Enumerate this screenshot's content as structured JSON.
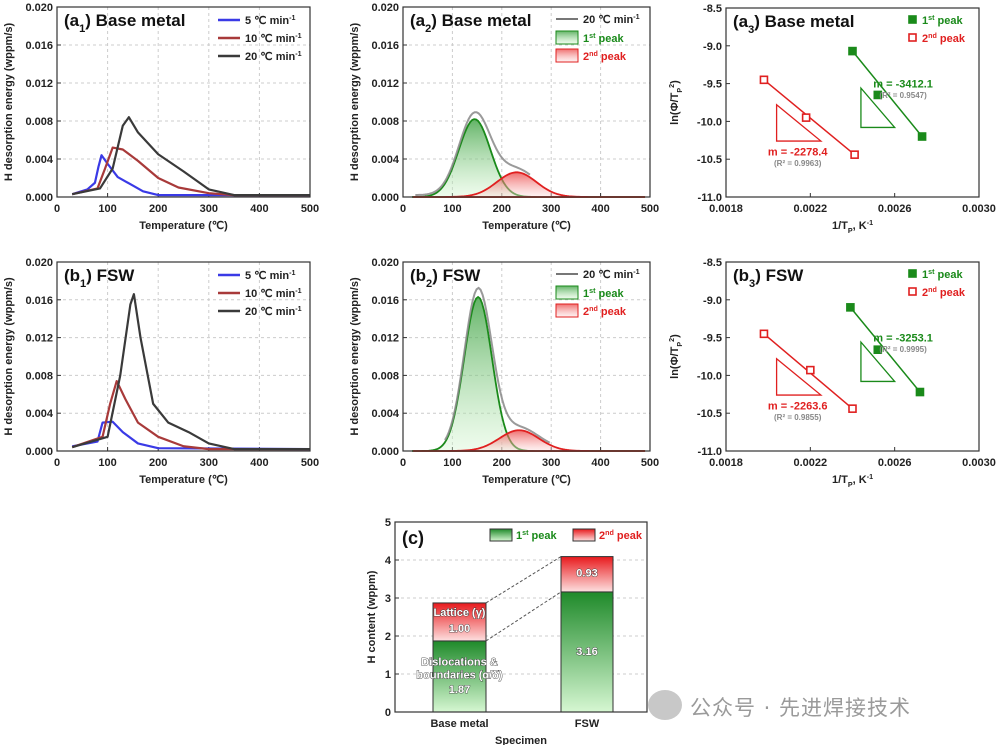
{
  "colors": {
    "c5": "#3a3ae6",
    "c10": "#a83a3a",
    "c20": "#3a3a3a",
    "green": "#1a8a1a",
    "red": "#e02020",
    "gray": "#888888"
  },
  "watermark": "公众号 · 先进焊接技术",
  "chart_data": [
    {
      "id": "a1",
      "type": "line",
      "label": [
        [
          "(a",
          ""
        ],
        [
          "1",
          "sub"
        ],
        [
          ") Base metal",
          ""
        ]
      ],
      "xlabel": [
        [
          "Temperature (℃)",
          ""
        ]
      ],
      "ylabel": [
        [
          "H desorption energy (wppm/s)",
          ""
        ]
      ],
      "xlim": [
        0,
        500
      ],
      "ylim": [
        0,
        0.02
      ],
      "xticks": [
        "0",
        "100",
        "200",
        "300",
        "400",
        "500"
      ],
      "yticks": [
        "0.000",
        "0.004",
        "0.008",
        "0.012",
        "0.016",
        "0.020"
      ],
      "grid": true,
      "legend": "top-right",
      "series": [
        {
          "name": [
            [
              "5 ℃ min",
              ""
            ],
            [
              "-1",
              "sup"
            ]
          ],
          "color": "c5",
          "points": [
            [
              30,
              0.0003
            ],
            [
              60,
              0.0008
            ],
            [
              75,
              0.0015
            ],
            [
              82,
              0.0032
            ],
            [
              88,
              0.0044
            ],
            [
              100,
              0.0035
            ],
            [
              120,
              0.0021
            ],
            [
              150,
              0.0012
            ],
            [
              170,
              0.0006
            ],
            [
              200,
              0.0002
            ],
            [
              500,
              0.0002
            ]
          ]
        },
        {
          "name": [
            [
              "10 ℃ min",
              ""
            ],
            [
              "-1",
              "sup"
            ]
          ],
          "color": "c10",
          "points": [
            [
              30,
              0.0003
            ],
            [
              80,
              0.0009
            ],
            [
              95,
              0.003
            ],
            [
              110,
              0.0052
            ],
            [
              130,
              0.005
            ],
            [
              160,
              0.0038
            ],
            [
              200,
              0.002
            ],
            [
              240,
              0.001
            ],
            [
              300,
              0.0004
            ],
            [
              350,
              0.0002
            ],
            [
              500,
              0.0002
            ]
          ]
        },
        {
          "name": [
            [
              "20 ℃ min",
              ""
            ],
            [
              "-1",
              "sup"
            ]
          ],
          "color": "c20",
          "points": [
            [
              30,
              0.0003
            ],
            [
              85,
              0.0009
            ],
            [
              110,
              0.003
            ],
            [
              130,
              0.0075
            ],
            [
              142,
              0.0084
            ],
            [
              160,
              0.0068
            ],
            [
              200,
              0.0045
            ],
            [
              250,
              0.0027
            ],
            [
              300,
              0.0008
            ],
            [
              350,
              0.0002
            ],
            [
              500,
              0.0002
            ]
          ]
        }
      ]
    },
    {
      "id": "a2",
      "type": "area",
      "label": [
        [
          "(a",
          ""
        ],
        [
          "2",
          "sub"
        ],
        [
          ") Base metal",
          ""
        ]
      ],
      "xlabel": [
        [
          "Temperature (℃)",
          ""
        ]
      ],
      "ylabel": [
        [
          "H desorption energy (wppm/s)",
          ""
        ]
      ],
      "xlim": [
        0,
        500
      ],
      "ylim": [
        0,
        0.02
      ],
      "xticks": [
        "0",
        "100",
        "200",
        "300",
        "400",
        "500"
      ],
      "yticks": [
        "0.000",
        "0.004",
        "0.008",
        "0.012",
        "0.016",
        "0.020"
      ],
      "grid": true,
      "legend": "top-right",
      "measured": {
        "name": [
          [
            "20 ℃ min",
            ""
          ],
          [
            "-1",
            "sup"
          ]
        ],
        "range": [
          25,
          260
        ]
      },
      "peaks": [
        {
          "name": [
            [
              "1",
              ""
            ],
            [
              "st",
              "sup"
            ],
            [
              " peak",
              ""
            ]
          ],
          "center": 145,
          "height": 0.0082,
          "sigma": 32,
          "color": "green"
        },
        {
          "name": [
            [
              "2",
              ""
            ],
            [
              "nd",
              "sup"
            ],
            [
              " peak",
              ""
            ]
          ],
          "center": 230,
          "height": 0.0026,
          "sigma": 40,
          "color": "red"
        }
      ]
    },
    {
      "id": "a3",
      "type": "scatter",
      "label": [
        [
          "(a",
          ""
        ],
        [
          "3",
          "sub"
        ],
        [
          ") Base metal",
          ""
        ]
      ],
      "xlabel": [
        [
          "1/T",
          ""
        ],
        [
          "P",
          "sub"
        ],
        [
          ", K",
          ""
        ],
        [
          "-1",
          "sup"
        ]
      ],
      "ylabel": [
        [
          "ln(Φ/T",
          ""
        ],
        [
          "P",
          "sub"
        ],
        [
          "2",
          "sup"
        ],
        [
          ")",
          ""
        ]
      ],
      "xlim": [
        0.0018,
        0.003
      ],
      "ylim": [
        -11,
        -8.5
      ],
      "xticks": [
        "0.0018",
        "0.0022",
        "0.0026",
        "0.0030"
      ],
      "yticks": [
        "-11.0",
        "-10.5",
        "-10.0",
        "-9.5",
        "-9.0",
        "-8.5"
      ],
      "grid": false,
      "legend": "top-right",
      "series": [
        {
          "name": [
            [
              "1",
              ""
            ],
            [
              "st",
              "sup"
            ],
            [
              " peak",
              ""
            ]
          ],
          "color": "green",
          "filled": true,
          "points": [
            [
              0.0024,
              -9.07
            ],
            [
              0.00252,
              -9.65
            ],
            [
              0.00273,
              -10.2
            ]
          ],
          "slope": "m = -3412.1",
          "r2": "(R² = 0.9547)"
        },
        {
          "name": [
            [
              "2",
              ""
            ],
            [
              "nd",
              "sup"
            ],
            [
              " peak",
              ""
            ]
          ],
          "color": "red",
          "filled": false,
          "points": [
            [
              0.00198,
              -9.45
            ],
            [
              0.00218,
              -9.95
            ],
            [
              0.00241,
              -10.44
            ]
          ],
          "slope": "m = -2278.4",
          "r2": "(R² = 0.9963)"
        }
      ]
    },
    {
      "id": "b1",
      "type": "line",
      "label": [
        [
          "(b",
          ""
        ],
        [
          "1",
          "sub"
        ],
        [
          ") FSW",
          ""
        ]
      ],
      "xlabel": [
        [
          "Temperature (℃)",
          ""
        ]
      ],
      "ylabel": [
        [
          "H desorption energy (wppm/s)",
          ""
        ]
      ],
      "xlim": [
        0,
        500
      ],
      "ylim": [
        0,
        0.02
      ],
      "xticks": [
        "0",
        "100",
        "200",
        "300",
        "400",
        "500"
      ],
      "yticks": [
        "0.000",
        "0.004",
        "0.008",
        "0.012",
        "0.016",
        "0.020"
      ],
      "grid": true,
      "legend": "top-right",
      "series": [
        {
          "name": [
            [
              "5 ℃ min",
              ""
            ],
            [
              "-1",
              "sup"
            ]
          ],
          "color": "c5",
          "points": [
            [
              30,
              0.0005
            ],
            [
              80,
              0.001
            ],
            [
              90,
              0.003
            ],
            [
              110,
              0.0031
            ],
            [
              130,
              0.002
            ],
            [
              160,
              0.0008
            ],
            [
              200,
              0.0003
            ],
            [
              500,
              0.0002
            ]
          ]
        },
        {
          "name": [
            [
              "10 ℃ min",
              ""
            ],
            [
              "-1",
              "sup"
            ]
          ],
          "color": "c10",
          "points": [
            [
              30,
              0.0004
            ],
            [
              90,
              0.0015
            ],
            [
              105,
              0.005
            ],
            [
              118,
              0.0074
            ],
            [
              135,
              0.0055
            ],
            [
              160,
              0.003
            ],
            [
              200,
              0.0015
            ],
            [
              250,
              0.0005
            ],
            [
              300,
              0.0002
            ],
            [
              500,
              0.0002
            ]
          ]
        },
        {
          "name": [
            [
              "20 ℃ min",
              ""
            ],
            [
              "-1",
              "sup"
            ]
          ],
          "color": "c20",
          "points": [
            [
              30,
              0.0004
            ],
            [
              100,
              0.0015
            ],
            [
              125,
              0.008
            ],
            [
              145,
              0.0155
            ],
            [
              152,
              0.0166
            ],
            [
              165,
              0.012
            ],
            [
              190,
              0.005
            ],
            [
              220,
              0.003
            ],
            [
              260,
              0.002
            ],
            [
              300,
              0.0008
            ],
            [
              350,
              0.0002
            ],
            [
              500,
              0.0002
            ]
          ]
        }
      ]
    },
    {
      "id": "b2",
      "type": "area",
      "label": [
        [
          "(b",
          ""
        ],
        [
          "2",
          "sub"
        ],
        [
          ") FSW",
          ""
        ]
      ],
      "xlabel": [
        [
          "Temperature (℃)",
          ""
        ]
      ],
      "ylabel": [
        [
          "H desorption energy (wppm/s)",
          ""
        ]
      ],
      "xlim": [
        0,
        500
      ],
      "ylim": [
        0,
        0.02
      ],
      "xticks": [
        "0",
        "100",
        "200",
        "300",
        "400",
        "500"
      ],
      "yticks": [
        "0.000",
        "0.004",
        "0.008",
        "0.012",
        "0.016",
        "0.020"
      ],
      "grid": true,
      "legend": "top-right",
      "measured": {
        "name": [
          [
            "20 ℃ min",
            ""
          ],
          [
            "-1",
            "sup"
          ]
        ],
        "range": [
          85,
          300
        ]
      },
      "peaks": [
        {
          "name": [
            [
              "1",
              ""
            ],
            [
              "st",
              "sup"
            ],
            [
              " peak",
              ""
            ]
          ],
          "center": 152,
          "height": 0.0163,
          "sigma": 28,
          "color": "green"
        },
        {
          "name": [
            [
              "2",
              ""
            ],
            [
              "nd",
              "sup"
            ],
            [
              " peak",
              ""
            ]
          ],
          "center": 235,
          "height": 0.0022,
          "sigma": 40,
          "color": "red"
        }
      ]
    },
    {
      "id": "b3",
      "type": "scatter",
      "label": [
        [
          "(b",
          ""
        ],
        [
          "3",
          "sub"
        ],
        [
          ") FSW",
          ""
        ]
      ],
      "xlabel": [
        [
          "1/T",
          ""
        ],
        [
          "P",
          "sub"
        ],
        [
          ", K",
          ""
        ],
        [
          "-1",
          "sup"
        ]
      ],
      "ylabel": [
        [
          "ln(Φ/T",
          ""
        ],
        [
          "P",
          "sub"
        ],
        [
          "2",
          "sup"
        ],
        [
          ")",
          ""
        ]
      ],
      "xlim": [
        0.0018,
        0.003
      ],
      "ylim": [
        -11,
        -8.5
      ],
      "xticks": [
        "0.0018",
        "0.0022",
        "0.0026",
        "0.0030"
      ],
      "yticks": [
        "-11.0",
        "-10.5",
        "-10.0",
        "-9.5",
        "-9.0",
        "-8.5"
      ],
      "grid": false,
      "legend": "top-right",
      "series": [
        {
          "name": [
            [
              "1",
              ""
            ],
            [
              "st",
              "sup"
            ],
            [
              " peak",
              ""
            ]
          ],
          "color": "green",
          "filled": true,
          "points": [
            [
              0.00239,
              -9.1
            ],
            [
              0.00252,
              -9.66
            ],
            [
              0.00272,
              -10.22
            ]
          ],
          "slope": "m = -3253.1",
          "r2": "(R² = 0.9995)"
        },
        {
          "name": [
            [
              "2",
              ""
            ],
            [
              "nd",
              "sup"
            ],
            [
              " peak",
              ""
            ]
          ],
          "color": "red",
          "filled": false,
          "points": [
            [
              0.00198,
              -9.45
            ],
            [
              0.0022,
              -9.93
            ],
            [
              0.0024,
              -10.44
            ]
          ],
          "slope": "m = -2263.6",
          "r2": "(R² = 0.9855)"
        }
      ]
    },
    {
      "id": "c",
      "type": "bar",
      "stacked": true,
      "label": [
        [
          "(c)",
          ""
        ]
      ],
      "xlabel": [
        [
          "Specimen",
          ""
        ]
      ],
      "ylabel": [
        [
          "H content (wppm)",
          ""
        ]
      ],
      "ylim": [
        0,
        5
      ],
      "yticks": [
        "0",
        "1",
        "2",
        "3",
        "4",
        "5"
      ],
      "grid": true,
      "legend": "top-right",
      "categories": [
        "Base metal",
        "FSW"
      ],
      "series": [
        {
          "name": [
            [
              "1",
              ""
            ],
            [
              "st",
              "sup"
            ],
            [
              " peak",
              ""
            ]
          ],
          "color": "green",
          "values": [
            1.87,
            3.16
          ]
        },
        {
          "name": [
            [
              "2",
              ""
            ],
            [
              "nd",
              "sup"
            ],
            [
              " peak",
              ""
            ]
          ],
          "color": "red",
          "values": [
            1.0,
            0.93
          ]
        }
      ],
      "annotations": {
        "lattice": "Lattice (γ)",
        "disloc1": "Dislocations &",
        "disloc2": "boundaries (α/δ)"
      },
      "value_labels": [
        [
          "1.87",
          "3.16"
        ],
        [
          "1.00",
          "0.93"
        ]
      ]
    }
  ]
}
